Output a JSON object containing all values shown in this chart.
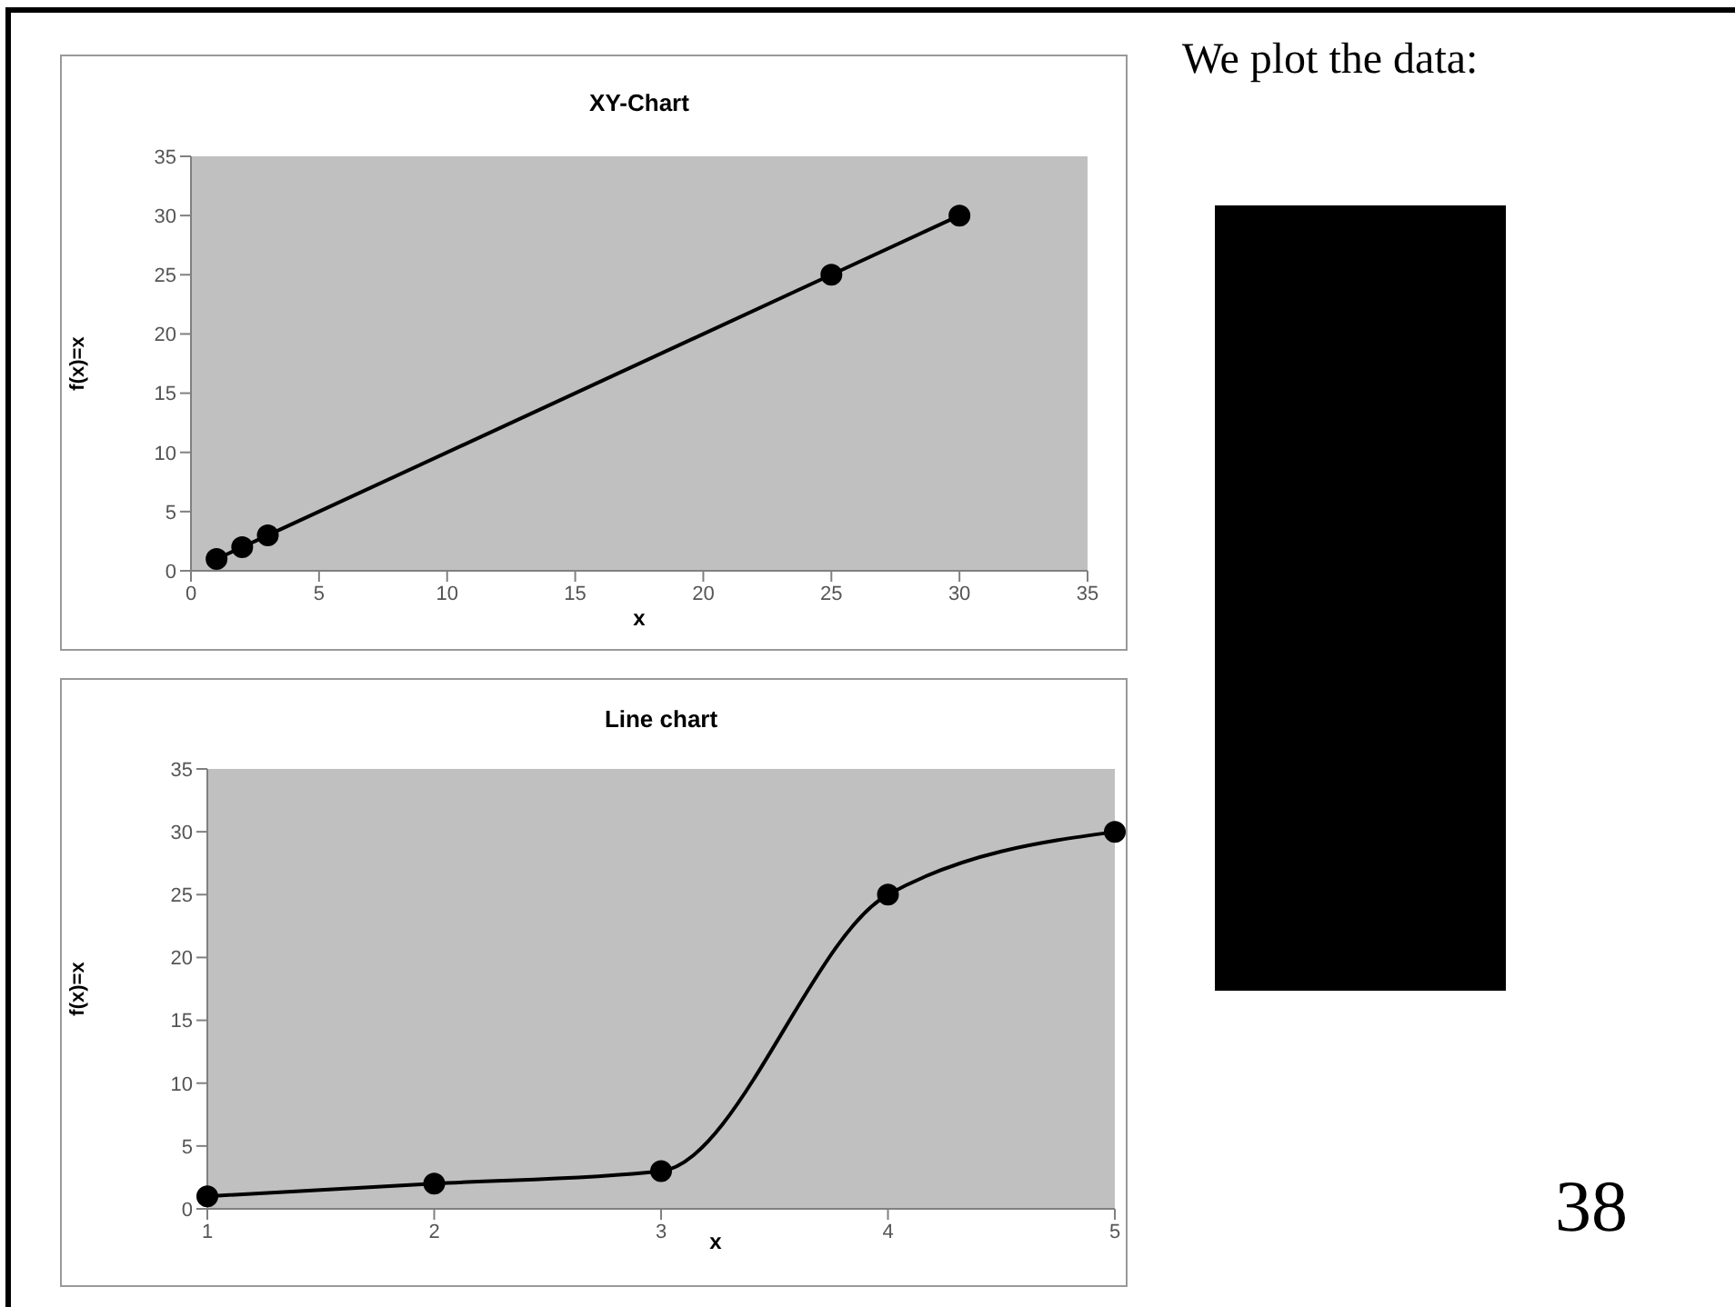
{
  "chart_data": [
    {
      "type": "line",
      "title": "XY-Chart",
      "xlabel": "x",
      "ylabel": "f(x)=x",
      "x": [
        1,
        2,
        3,
        25,
        30
      ],
      "series": [
        {
          "color": "#000000",
          "values": [
            1,
            2,
            3,
            25,
            30
          ]
        }
      ],
      "xlim": [
        0,
        35
      ],
      "xticks": [
        0,
        5,
        10,
        15,
        20,
        25,
        30,
        35
      ],
      "ylim": [
        0,
        35
      ],
      "yticks": [
        0,
        5,
        10,
        15,
        20,
        25,
        30,
        35
      ],
      "marker": "circle",
      "line_style": "solid"
    },
    {
      "type": "line",
      "title": "Line chart",
      "xlabel": "x",
      "ylabel": "f(x)=x",
      "categories": [
        "1",
        "2",
        "3",
        "4",
        "5"
      ],
      "series": [
        {
          "color": "#000000",
          "values": [
            1,
            2,
            3,
            25,
            30
          ]
        }
      ],
      "ylim": [
        0,
        35
      ],
      "yticks": [
        0,
        5,
        10,
        15,
        20,
        25,
        30,
        35
      ],
      "marker": "circle",
      "line_style": "solid"
    },
    {
      "type": "other",
      "annotations": [
        "We plot the data:",
        "38"
      ]
    }
  ]
}
